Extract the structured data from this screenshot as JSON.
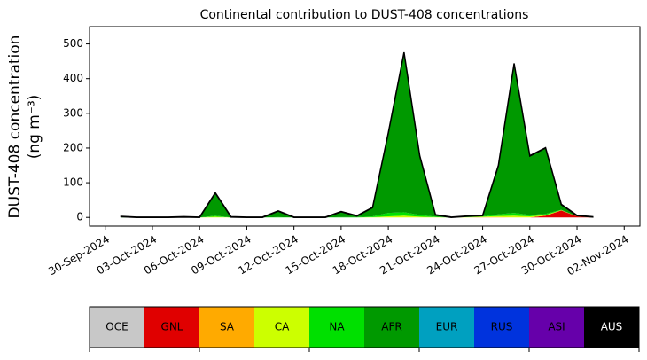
{
  "chart_data": {
    "type": "stacked-area",
    "title": "Continental contribution to DUST-408 concentrations",
    "ylabel": [
      "DUST-408 concentration",
      "(ng m⁻³)"
    ],
    "x": [
      "2024-10-01",
      "2024-10-02",
      "2024-10-03",
      "2024-10-04",
      "2024-10-05",
      "2024-10-06",
      "2024-10-07",
      "2024-10-08",
      "2024-10-09",
      "2024-10-10",
      "2024-10-11",
      "2024-10-12",
      "2024-10-13",
      "2024-10-14",
      "2024-10-15",
      "2024-10-16",
      "2024-10-17",
      "2024-10-18",
      "2024-10-19",
      "2024-10-20",
      "2024-10-21",
      "2024-10-22",
      "2024-10-23",
      "2024-10-24",
      "2024-10-25",
      "2024-10-26",
      "2024-10-27",
      "2024-10-28",
      "2024-10-29",
      "2024-10-30",
      "2024-10-31"
    ],
    "xlim": [
      "2024-09-29",
      "2024-11-03"
    ],
    "xticks": [
      {
        "value": "2024-09-30",
        "label": "30-Sep-2024"
      },
      {
        "value": "2024-10-03",
        "label": "03-Oct-2024"
      },
      {
        "value": "2024-10-06",
        "label": "06-Oct-2024"
      },
      {
        "value": "2024-10-09",
        "label": "09-Oct-2024"
      },
      {
        "value": "2024-10-12",
        "label": "12-Oct-2024"
      },
      {
        "value": "2024-10-15",
        "label": "15-Oct-2024"
      },
      {
        "value": "2024-10-18",
        "label": "18-Oct-2024"
      },
      {
        "value": "2024-10-21",
        "label": "21-Oct-2024"
      },
      {
        "value": "2024-10-24",
        "label": "24-Oct-2024"
      },
      {
        "value": "2024-10-27",
        "label": "27-Oct-2024"
      },
      {
        "value": "2024-10-30",
        "label": "30-Oct-2024"
      },
      {
        "value": "2024-11-02",
        "label": "02-Nov-2024"
      }
    ],
    "ylim": [
      -25,
      550
    ],
    "yticks": [
      0,
      100,
      200,
      300,
      400,
      500
    ],
    "series": [
      {
        "name": "OCE",
        "color": "#c8c8c8",
        "values": [
          0,
          0,
          0,
          0,
          0,
          0,
          0,
          0,
          0,
          0,
          0,
          0,
          0,
          0,
          0,
          0,
          0,
          0,
          0,
          0,
          0,
          0,
          0,
          0,
          0,
          0,
          0,
          0,
          0,
          0,
          0
        ]
      },
      {
        "name": "GNL",
        "color": "#e00000",
        "values": [
          0,
          0,
          0,
          0,
          0,
          0,
          0,
          0,
          0,
          0,
          0,
          0,
          0,
          0,
          0,
          0,
          0,
          0,
          0,
          0,
          0,
          0,
          0,
          0,
          0,
          0,
          0,
          5,
          20,
          3,
          0
        ]
      },
      {
        "name": "SA",
        "color": "#ffaa00",
        "values": [
          0,
          0,
          0,
          0,
          0,
          0,
          0,
          0,
          0,
          0,
          0,
          0,
          0,
          0,
          0,
          0,
          0,
          0,
          0,
          0,
          0,
          0,
          0,
          1,
          1,
          0,
          0,
          0,
          0,
          0,
          0
        ]
      },
      {
        "name": "CA",
        "color": "#ccff00",
        "values": [
          0,
          0,
          0,
          0,
          0,
          0,
          2,
          0,
          0,
          0,
          0,
          0,
          0,
          0,
          0,
          0,
          1,
          3,
          5,
          2,
          1,
          0,
          1,
          1,
          3,
          5,
          3,
          2,
          1,
          0,
          0
        ]
      },
      {
        "name": "NA",
        "color": "#00e000",
        "values": [
          0,
          0,
          0,
          0,
          0,
          0,
          3,
          0,
          0,
          0,
          1,
          0,
          0,
          0,
          1,
          1,
          2,
          10,
          10,
          5,
          1,
          0,
          1,
          1,
          5,
          8,
          4,
          3,
          1,
          0,
          0
        ]
      },
      {
        "name": "AFR",
        "color": "#009900",
        "values": [
          2,
          0,
          0,
          0,
          1,
          0,
          65,
          1,
          0,
          0,
          17,
          0,
          0,
          0,
          15,
          3,
          25,
          230,
          460,
          170,
          5,
          0,
          1,
          2,
          140,
          430,
          170,
          190,
          15,
          2,
          1
        ]
      },
      {
        "name": "EUR",
        "color": "#00a0c0",
        "values": [
          0,
          0,
          0,
          0,
          0,
          0,
          0,
          0,
          0,
          0,
          0,
          0,
          0,
          0,
          0,
          0,
          0,
          0,
          0,
          0,
          0,
          0,
          0,
          0,
          0,
          0,
          0,
          0,
          0,
          0,
          0
        ]
      },
      {
        "name": "RUS",
        "color": "#0033dd",
        "values": [
          0,
          0,
          0,
          0,
          0,
          0,
          0,
          0,
          0,
          0,
          0,
          0,
          0,
          0,
          0,
          0,
          0,
          0,
          0,
          0,
          0,
          0,
          0,
          0,
          0,
          0,
          0,
          0,
          0,
          0,
          0
        ]
      },
      {
        "name": "ASI",
        "color": "#6600aa",
        "values": [
          0,
          0,
          0,
          0,
          0,
          0,
          0,
          0,
          0,
          0,
          0,
          0,
          0,
          0,
          0,
          0,
          0,
          0,
          0,
          0,
          0,
          0,
          0,
          0,
          0,
          0,
          0,
          0,
          0,
          0,
          0
        ]
      },
      {
        "name": "AUS",
        "color": "#000000",
        "values": [
          1,
          1,
          1,
          1,
          1,
          1,
          1,
          1,
          1,
          1,
          1,
          1,
          1,
          1,
          1,
          1,
          1,
          1,
          1,
          1,
          1,
          1,
          1,
          1,
          1,
          1,
          1,
          1,
          1,
          1,
          1
        ]
      }
    ]
  }
}
